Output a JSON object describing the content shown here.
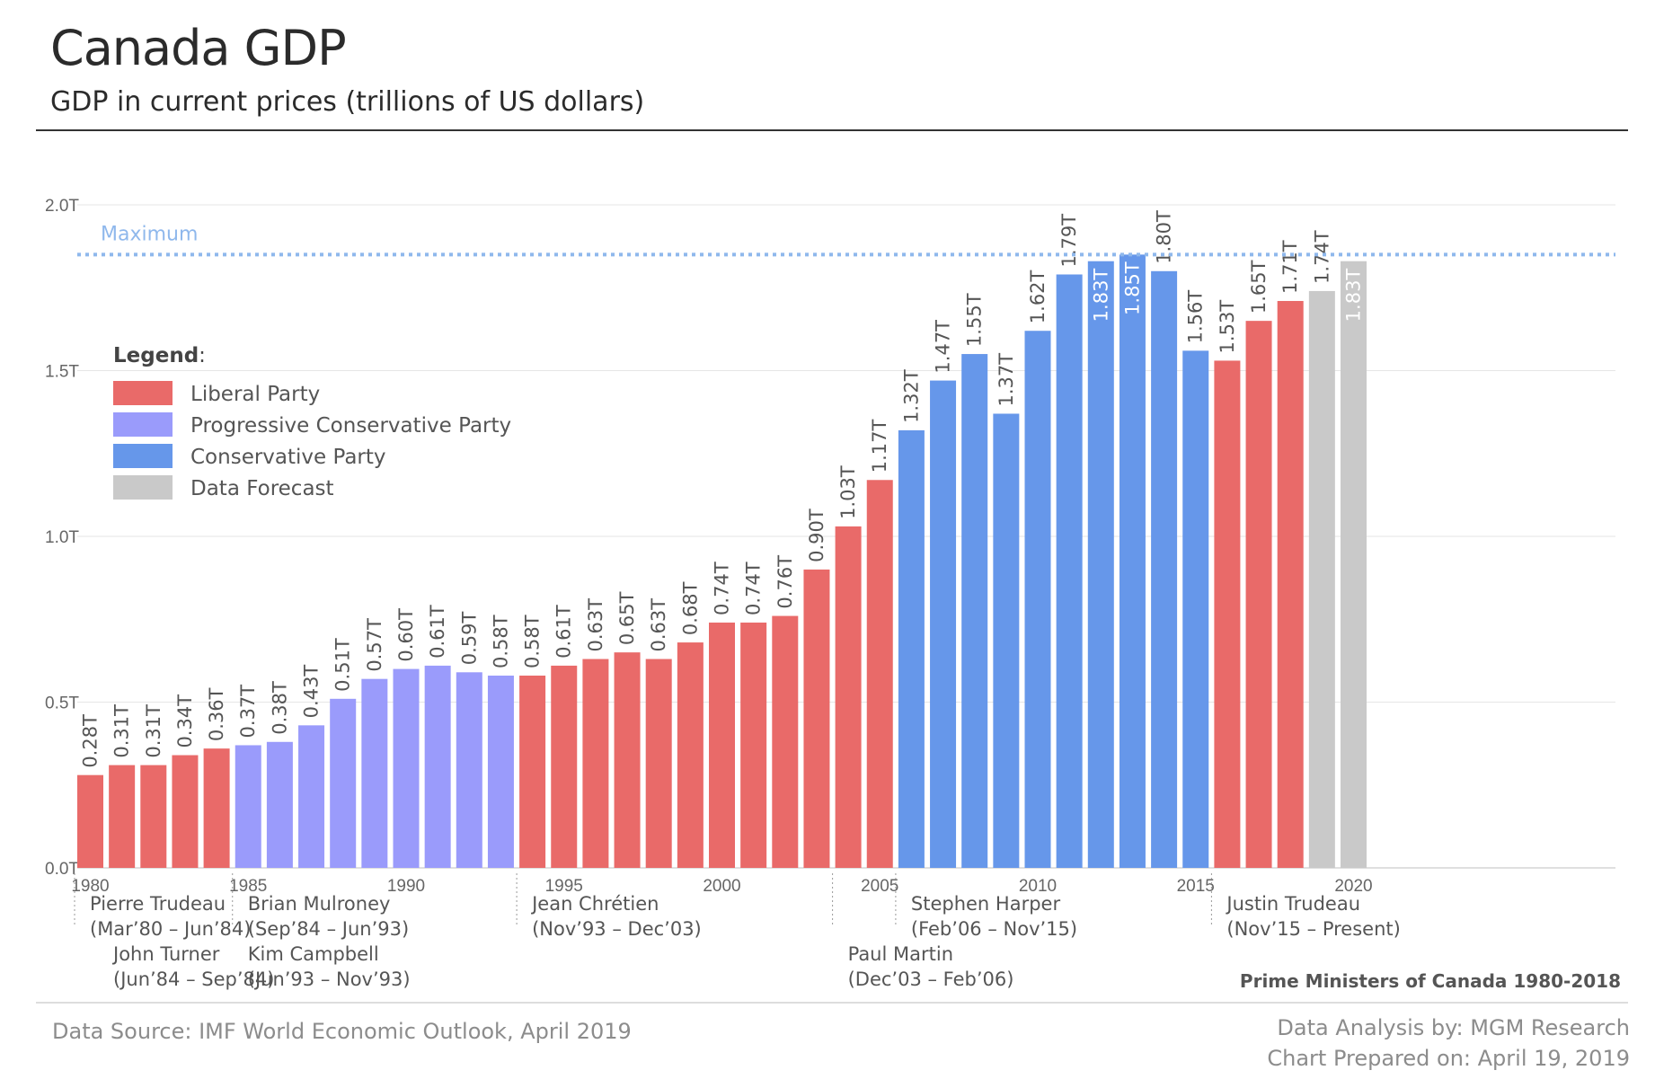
{
  "header": {
    "title": "Canada GDP",
    "subtitle": "GDP in current prices (trillions of US dollars)"
  },
  "chart_data": {
    "type": "bar",
    "ylim": [
      0,
      2.0
    ],
    "y_ticks": [
      "0.0T",
      "0.5T",
      "1.0T",
      "1.5T",
      "2.0T"
    ],
    "x_tick_labels": [
      "1980",
      "1985",
      "1990",
      "1995",
      "2000",
      "2005",
      "2010",
      "2015",
      "2020"
    ],
    "grid": true,
    "categories": [
      1980,
      1981,
      1982,
      1983,
      1984,
      1985,
      1986,
      1987,
      1988,
      1989,
      1990,
      1991,
      1992,
      1993,
      1994,
      1995,
      1996,
      1997,
      1998,
      1999,
      2000,
      2001,
      2002,
      2003,
      2004,
      2005,
      2006,
      2007,
      2008,
      2009,
      2010,
      2011,
      2012,
      2013,
      2014,
      2015,
      2016,
      2017,
      2018,
      2019,
      2020
    ],
    "values": [
      0.28,
      0.31,
      0.31,
      0.34,
      0.36,
      0.37,
      0.38,
      0.43,
      0.51,
      0.57,
      0.6,
      0.61,
      0.59,
      0.58,
      0.58,
      0.61,
      0.63,
      0.65,
      0.63,
      0.68,
      0.74,
      0.74,
      0.76,
      0.9,
      1.03,
      1.17,
      1.32,
      1.47,
      1.55,
      1.37,
      1.62,
      1.79,
      1.83,
      1.85,
      1.8,
      1.56,
      1.53,
      1.65,
      1.71,
      1.74,
      1.83
    ],
    "labels": [
      "0.28T",
      "0.31T",
      "0.31T",
      "0.34T",
      "0.36T",
      "0.37T",
      "0.38T",
      "0.43T",
      "0.51T",
      "0.57T",
      "0.60T",
      "0.61T",
      "0.59T",
      "0.58T",
      "0.58T",
      "0.61T",
      "0.63T",
      "0.65T",
      "0.63T",
      "0.68T",
      "0.74T",
      "0.74T",
      "0.76T",
      "0.90T",
      "1.03T",
      "1.17T",
      "1.32T",
      "1.47T",
      "1.55T",
      "1.37T",
      "1.62T",
      "1.79T",
      "1.83T",
      "1.85T",
      "1.80T",
      "1.56T",
      "1.53T",
      "1.65T",
      "1.71T",
      "1.74T",
      "1.83T"
    ],
    "party": [
      "L",
      "L",
      "L",
      "L",
      "L",
      "PC",
      "PC",
      "PC",
      "PC",
      "PC",
      "PC",
      "PC",
      "PC",
      "PC",
      "L",
      "L",
      "L",
      "L",
      "L",
      "L",
      "L",
      "L",
      "L",
      "L",
      "L",
      "L",
      "C",
      "C",
      "C",
      "C",
      "C",
      "C",
      "C",
      "C",
      "C",
      "C",
      "L",
      "L",
      "L",
      "F",
      "F"
    ],
    "label_inside": [
      32,
      33,
      40
    ],
    "colors": {
      "L": "#e96a69",
      "PC": "#9a9bfb",
      "C": "#6697ea",
      "F": "#c9c9c9"
    },
    "maximum": {
      "label": "Maximum",
      "value": 1.85,
      "color": "#8fb8ec"
    },
    "legend": {
      "title": "Legend",
      "placement": "left",
      "items": [
        {
          "key": "L",
          "label": "Liberal Party"
        },
        {
          "key": "PC",
          "label": "Progressive Conservative Party"
        },
        {
          "key": "C",
          "label": "Conservative Party"
        },
        {
          "key": "F",
          "label": "Data Forecast"
        }
      ]
    },
    "prime_ministers": [
      {
        "name": "Pierre Trudeau",
        "term": "(Mar’80 – Jun’84)",
        "start_year": 1980,
        "row": 1
      },
      {
        "name": "John Turner",
        "term": "(Jun’84 – Sep’84)",
        "start_year": 1980,
        "row": 2
      },
      {
        "name": "Brian Mulroney",
        "term": "(Sep’84 – Jun’93)",
        "start_year": 1985,
        "row": 1
      },
      {
        "name": "Kim Campbell",
        "term": "(Jun’93 – Nov’93)",
        "start_year": 1985,
        "row": 2
      },
      {
        "name": "Jean Chrétien",
        "term": "(Nov’93 – Dec’03)",
        "start_year": 1994,
        "row": 1
      },
      {
        "name": "Paul Martin",
        "term": "(Dec’03 – Feb’06)",
        "start_year": 2004,
        "row": 2
      },
      {
        "name": "Stephen Harper",
        "term": "(Feb’06 – Nov’15)",
        "start_year": 2006,
        "row": 1
      },
      {
        "name": "Justin Trudeau",
        "term": "(Nov’15 – Present)",
        "start_year": 2016,
        "row": 1
      }
    ],
    "pm_caption": "Prime Ministers of Canada 1980-2018"
  },
  "footer": {
    "source": "Data Source: IMF World Economic Outlook, April 2019",
    "analysis": "Data Analysis by: MGM Research",
    "prepared": "Chart Prepared on: April 19, 2019"
  }
}
